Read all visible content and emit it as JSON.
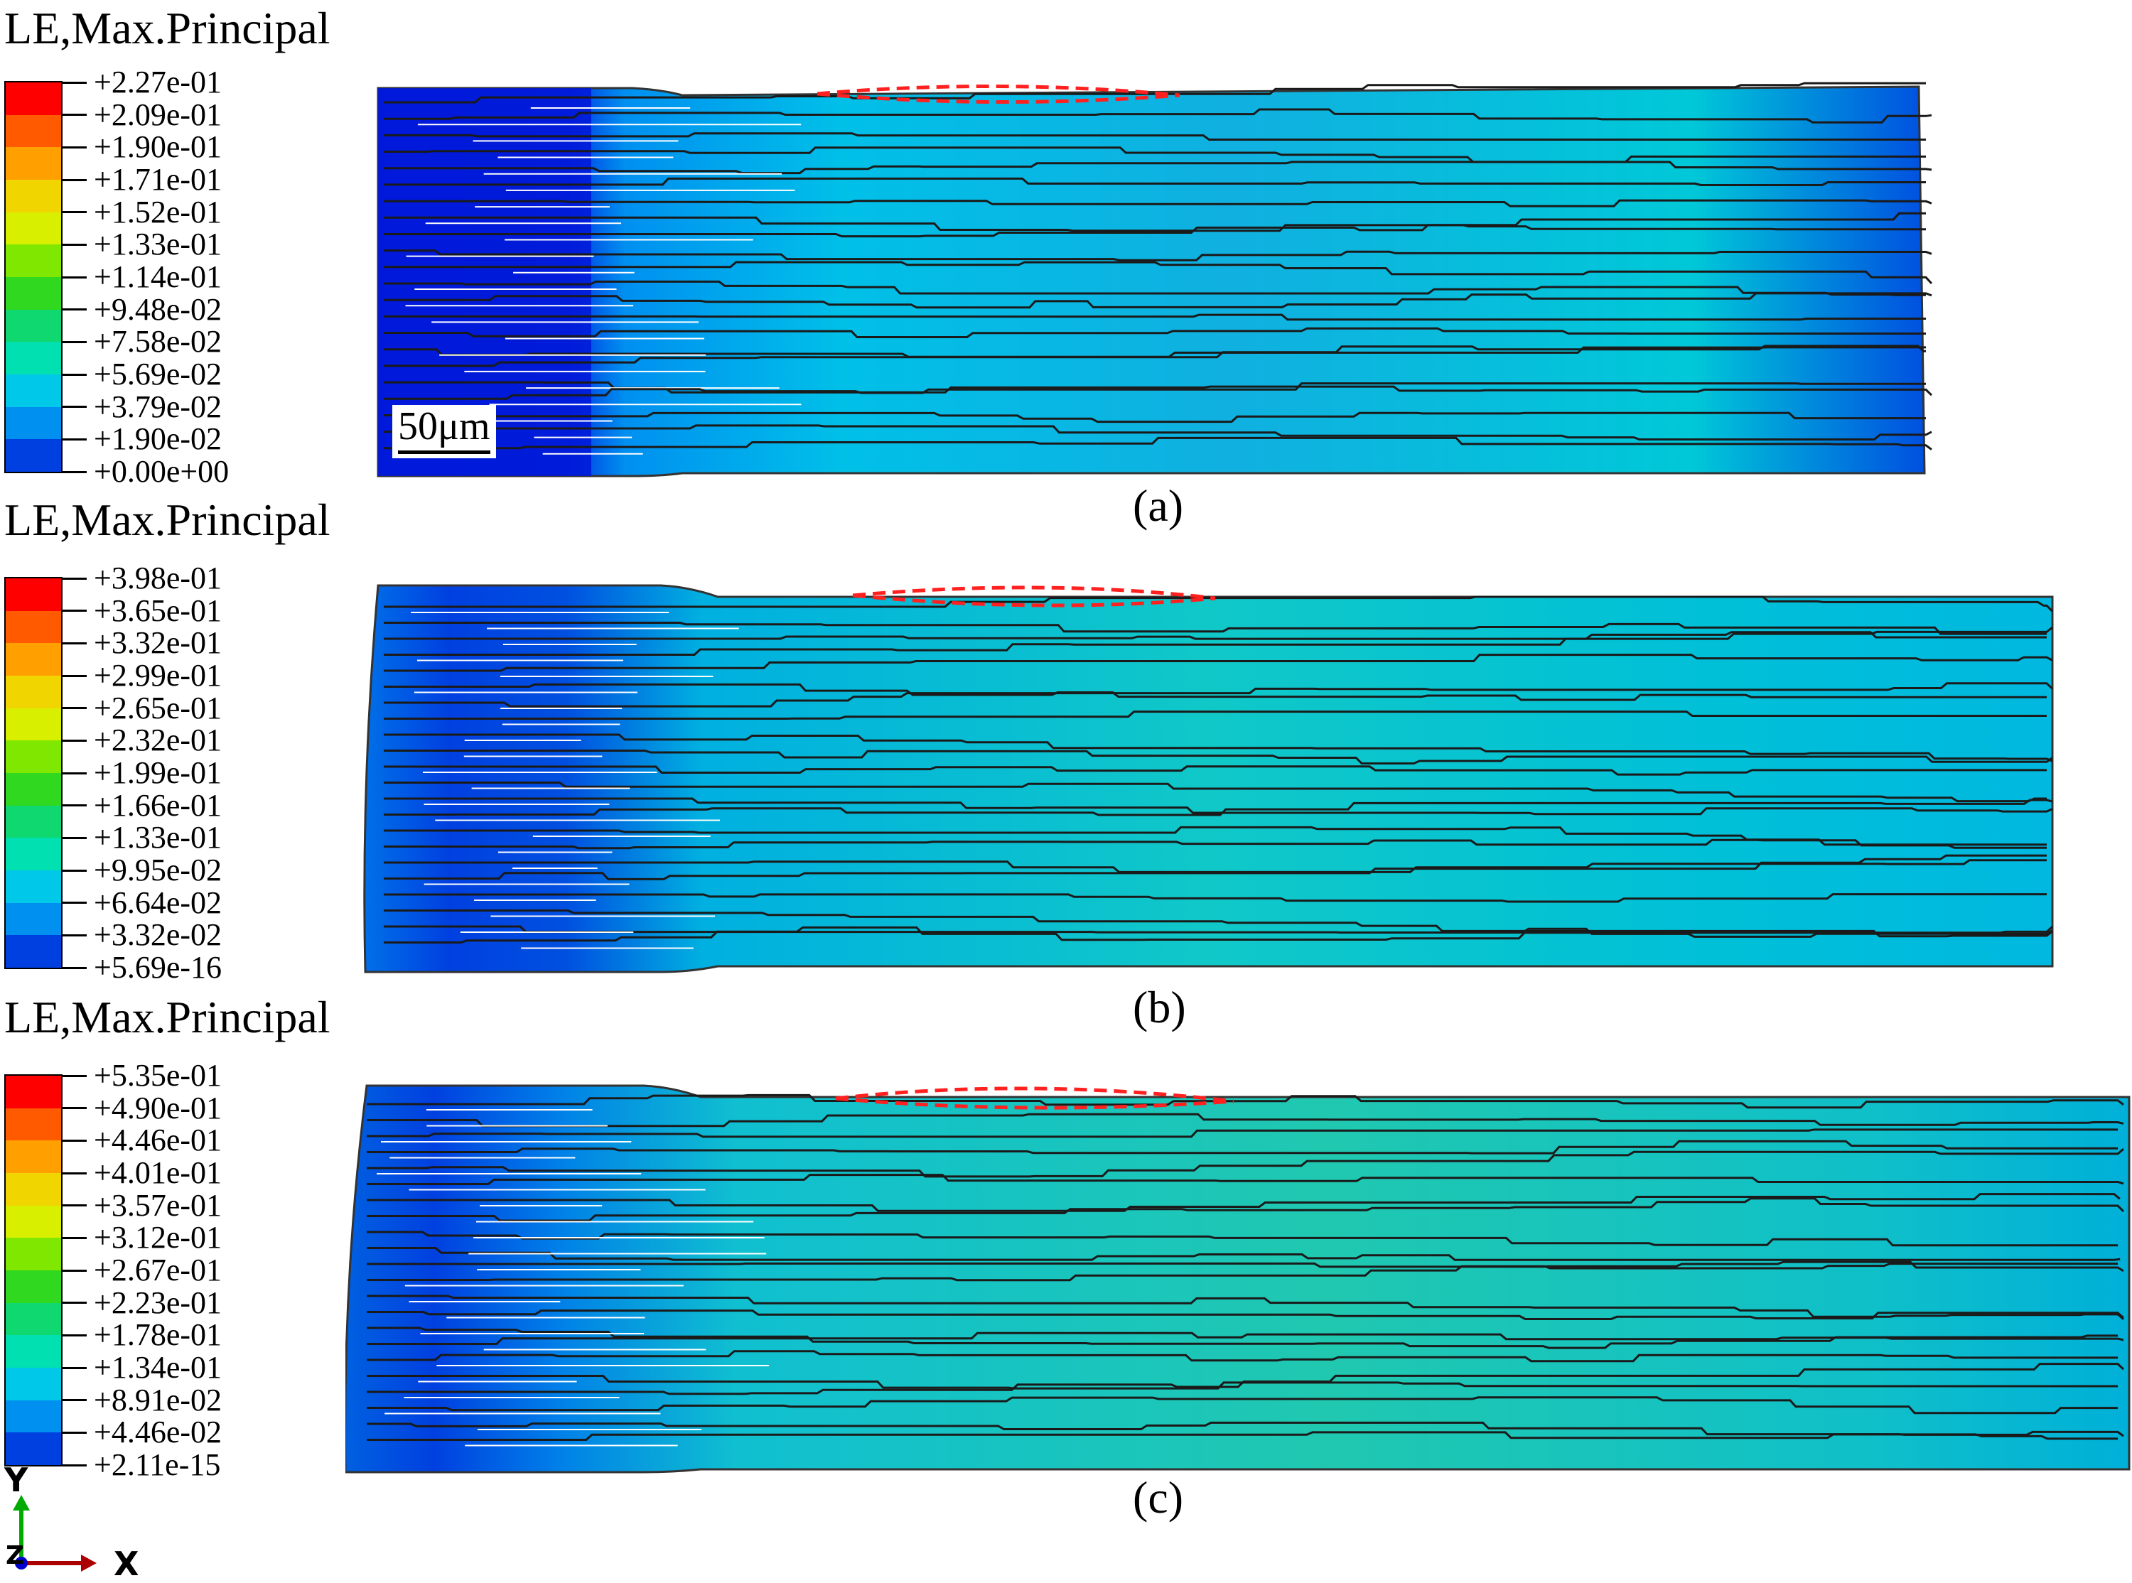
{
  "panels": [
    {
      "legend_title": "LE,Max.Principal",
      "legend_values": [
        "+2.27e-01",
        "+2.09e-01",
        "+1.90e-01",
        "+1.71e-01",
        "+1.52e-01",
        "+1.33e-01",
        "+1.14e-01",
        "+9.48e-02",
        "+7.58e-02",
        "+5.69e-02",
        "+3.79e-02",
        "+1.90e-02",
        "+0.00e+00"
      ],
      "caption": "(a)",
      "scale_bar": "50μm"
    },
    {
      "legend_title": "LE,Max.Principal",
      "legend_values": [
        "+3.98e-01",
        "+3.65e-01",
        "+3.32e-01",
        "+2.99e-01",
        "+2.65e-01",
        "+2.32e-01",
        "+1.99e-01",
        "+1.66e-01",
        "+1.33e-01",
        "+9.95e-02",
        "+6.64e-02",
        "+3.32e-02",
        "+5.69e-16"
      ],
      "caption": "(b)"
    },
    {
      "legend_title": "LE,Max.Principal",
      "legend_values": [
        "+5.35e-01",
        "+4.90e-01",
        "+4.46e-01",
        "+4.01e-01",
        "+3.57e-01",
        "+3.12e-01",
        "+2.67e-01",
        "+2.23e-01",
        "+1.78e-01",
        "+1.34e-01",
        "+8.91e-02",
        "+4.46e-02",
        "+2.11e-15"
      ],
      "caption": "(c)"
    }
  ],
  "legend_colors": [
    "#ff0000",
    "#ff5a00",
    "#ff9f00",
    "#f1d500",
    "#d8f000",
    "#80e800",
    "#30d820",
    "#10d870",
    "#00e0b0",
    "#00c8e8",
    "#0090f0",
    "#0040e0",
    "#0000d8"
  ],
  "triad": {
    "y": "Y",
    "z": "Z",
    "x": "X",
    "y_color": "#00aa00",
    "x_color": "#aa0000",
    "z_color": "#0000cc"
  }
}
